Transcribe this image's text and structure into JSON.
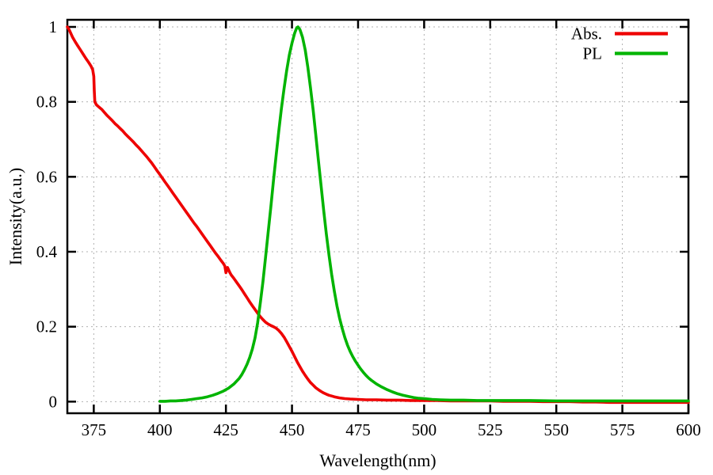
{
  "chart_data": {
    "type": "line",
    "title": "",
    "xlabel": "Wavelength(nm)",
    "ylabel": "Intensity(a.u.)",
    "xlim": [
      365,
      600
    ],
    "ylim": [
      -0.031,
      1.019
    ],
    "xticks": [
      375,
      400,
      425,
      450,
      475,
      500,
      525,
      550,
      575,
      600
    ],
    "xtick_labels": [
      "375",
      "400",
      "425",
      "450",
      "475",
      "500",
      "525",
      "550",
      "575",
      "600"
    ],
    "yticks": [
      0,
      0.2,
      0.4,
      0.6,
      0.8,
      1
    ],
    "ytick_labels": [
      "0",
      "0.2",
      "0.4",
      "0.6",
      "0.8",
      "1"
    ],
    "grid": true,
    "grid_color": "#b0b0b0",
    "border_color": "#000000",
    "background_color": "#ffffff",
    "legend_position": "top-right",
    "series": [
      {
        "name": "Abs.",
        "color": "#ee0000",
        "points": [
          [
            365,
            1.0
          ],
          [
            365.5,
            0.995
          ],
          [
            366,
            0.988
          ],
          [
            366.5,
            0.98
          ],
          [
            367,
            0.972
          ],
          [
            368,
            0.96
          ],
          [
            369,
            0.949
          ],
          [
            370,
            0.938
          ],
          [
            371,
            0.927
          ],
          [
            372,
            0.916
          ],
          [
            373,
            0.906
          ],
          [
            374,
            0.895
          ],
          [
            374.6,
            0.886
          ],
          [
            375,
            0.868
          ],
          [
            375.2,
            0.83
          ],
          [
            375.4,
            0.8
          ],
          [
            376,
            0.792
          ],
          [
            377,
            0.786
          ],
          [
            378,
            0.78
          ],
          [
            379,
            0.772
          ],
          [
            380,
            0.764
          ],
          [
            381,
            0.757
          ],
          [
            382,
            0.75
          ],
          [
            383,
            0.742
          ],
          [
            384,
            0.736
          ],
          [
            385,
            0.729
          ],
          [
            386,
            0.722
          ],
          [
            387,
            0.714
          ],
          [
            388,
            0.707
          ],
          [
            389,
            0.7
          ],
          [
            390,
            0.693
          ],
          [
            391,
            0.685
          ],
          [
            392,
            0.678
          ],
          [
            393,
            0.67
          ],
          [
            394,
            0.662
          ],
          [
            395,
            0.654
          ],
          [
            396,
            0.645
          ],
          [
            397,
            0.636
          ],
          [
            398,
            0.626
          ],
          [
            399,
            0.616
          ],
          [
            400,
            0.606
          ],
          [
            401,
            0.596
          ],
          [
            402,
            0.586
          ],
          [
            403,
            0.576
          ],
          [
            404,
            0.566
          ],
          [
            405,
            0.556
          ],
          [
            406,
            0.546
          ],
          [
            407,
            0.536
          ],
          [
            408,
            0.526
          ],
          [
            409,
            0.516
          ],
          [
            410,
            0.506
          ],
          [
            411,
            0.496
          ],
          [
            412,
            0.486
          ],
          [
            413,
            0.476
          ],
          [
            414,
            0.467
          ],
          [
            415,
            0.457
          ],
          [
            416,
            0.447
          ],
          [
            417,
            0.437
          ],
          [
            418,
            0.427
          ],
          [
            419,
            0.417
          ],
          [
            420,
            0.407
          ],
          [
            421,
            0.397
          ],
          [
            422,
            0.388
          ],
          [
            423,
            0.378
          ],
          [
            424,
            0.369
          ],
          [
            424.6,
            0.362
          ],
          [
            425,
            0.344
          ],
          [
            425.6,
            0.358
          ],
          [
            426.4,
            0.346
          ],
          [
            427,
            0.338
          ],
          [
            428,
            0.329
          ],
          [
            429,
            0.319
          ],
          [
            430,
            0.309
          ],
          [
            431,
            0.299
          ],
          [
            432,
            0.288
          ],
          [
            433,
            0.277
          ],
          [
            434,
            0.266
          ],
          [
            435,
            0.256
          ],
          [
            436,
            0.246
          ],
          [
            437,
            0.236
          ],
          [
            438,
            0.227
          ],
          [
            439,
            0.219
          ],
          [
            440,
            0.212
          ],
          [
            441,
            0.207
          ],
          [
            442,
            0.203
          ],
          [
            443,
            0.2
          ],
          [
            444,
            0.196
          ],
          [
            445,
            0.19
          ],
          [
            446,
            0.182
          ],
          [
            447,
            0.172
          ],
          [
            448,
            0.16
          ],
          [
            449,
            0.147
          ],
          [
            450,
            0.134
          ],
          [
            451,
            0.12
          ],
          [
            452,
            0.106
          ],
          [
            453,
            0.093
          ],
          [
            454,
            0.081
          ],
          [
            455,
            0.07
          ],
          [
            456,
            0.06
          ],
          [
            457,
            0.051
          ],
          [
            458,
            0.044
          ],
          [
            459,
            0.037
          ],
          [
            460,
            0.032
          ],
          [
            461,
            0.027
          ],
          [
            462,
            0.023
          ],
          [
            463,
            0.02
          ],
          [
            464,
            0.017
          ],
          [
            465,
            0.015
          ],
          [
            466,
            0.013
          ],
          [
            468,
            0.01
          ],
          [
            470,
            0.008
          ],
          [
            472,
            0.007
          ],
          [
            475,
            0.006
          ],
          [
            478,
            0.005
          ],
          [
            482,
            0.005
          ],
          [
            486,
            0.004
          ],
          [
            490,
            0.004
          ],
          [
            495,
            0.003
          ],
          [
            500,
            0.003
          ],
          [
            505,
            0.003
          ],
          [
            510,
            0.002
          ],
          [
            515,
            0.002
          ],
          [
            520,
            0.002
          ],
          [
            525,
            0.002
          ],
          [
            530,
            0.001
          ],
          [
            535,
            0.001
          ],
          [
            540,
            0.001
          ],
          [
            545,
            0.0
          ],
          [
            550,
            0.0
          ],
          [
            555,
            0.0
          ],
          [
            560,
            -0.001
          ],
          [
            565,
            -0.001
          ],
          [
            570,
            -0.002
          ],
          [
            575,
            -0.002
          ],
          [
            580,
            -0.002
          ],
          [
            585,
            -0.002
          ],
          [
            590,
            -0.002
          ],
          [
            595,
            -0.002
          ],
          [
            600,
            -0.002
          ]
        ]
      },
      {
        "name": "PL",
        "color": "#00b400",
        "points": [
          [
            400,
            0.001
          ],
          [
            402,
            0.001
          ],
          [
            404,
            0.002
          ],
          [
            406,
            0.002
          ],
          [
            408,
            0.003
          ],
          [
            410,
            0.004
          ],
          [
            412,
            0.006
          ],
          [
            414,
            0.008
          ],
          [
            416,
            0.01
          ],
          [
            418,
            0.013
          ],
          [
            420,
            0.017
          ],
          [
            422,
            0.022
          ],
          [
            424,
            0.028
          ],
          [
            426,
            0.036
          ],
          [
            428,
            0.047
          ],
          [
            430,
            0.062
          ],
          [
            431,
            0.072
          ],
          [
            432,
            0.085
          ],
          [
            433,
            0.1
          ],
          [
            434,
            0.118
          ],
          [
            435,
            0.14
          ],
          [
            436,
            0.17
          ],
          [
            437,
            0.21
          ],
          [
            438,
            0.262
          ],
          [
            439,
            0.32
          ],
          [
            440,
            0.385
          ],
          [
            441,
            0.452
          ],
          [
            442,
            0.52
          ],
          [
            443,
            0.59
          ],
          [
            444,
            0.658
          ],
          [
            445,
            0.722
          ],
          [
            446,
            0.782
          ],
          [
            447,
            0.836
          ],
          [
            448,
            0.884
          ],
          [
            449,
            0.925
          ],
          [
            450,
            0.957
          ],
          [
            451,
            0.983
          ],
          [
            451.8,
            0.998
          ],
          [
            452.3,
            1.0
          ],
          [
            453,
            0.993
          ],
          [
            454,
            0.972
          ],
          [
            455,
            0.938
          ],
          [
            456,
            0.892
          ],
          [
            457,
            0.838
          ],
          [
            458,
            0.778
          ],
          [
            459,
            0.712
          ],
          [
            460,
            0.644
          ],
          [
            461,
            0.576
          ],
          [
            462,
            0.51
          ],
          [
            463,
            0.448
          ],
          [
            464,
            0.391
          ],
          [
            465,
            0.34
          ],
          [
            466,
            0.295
          ],
          [
            467,
            0.256
          ],
          [
            468,
            0.223
          ],
          [
            469,
            0.195
          ],
          [
            470,
            0.171
          ],
          [
            471,
            0.151
          ],
          [
            472,
            0.134
          ],
          [
            473,
            0.12
          ],
          [
            474,
            0.108
          ],
          [
            475,
            0.097
          ],
          [
            476,
            0.087
          ],
          [
            477,
            0.078
          ],
          [
            478,
            0.07
          ],
          [
            479,
            0.063
          ],
          [
            480,
            0.057
          ],
          [
            482,
            0.047
          ],
          [
            484,
            0.039
          ],
          [
            486,
            0.032
          ],
          [
            488,
            0.026
          ],
          [
            490,
            0.021
          ],
          [
            492,
            0.017
          ],
          [
            494,
            0.014
          ],
          [
            496,
            0.011
          ],
          [
            498,
            0.009
          ],
          [
            500,
            0.008
          ],
          [
            503,
            0.006
          ],
          [
            506,
            0.005
          ],
          [
            510,
            0.004
          ],
          [
            515,
            0.004
          ],
          [
            520,
            0.003
          ],
          [
            530,
            0.003
          ],
          [
            540,
            0.003
          ],
          [
            550,
            0.002
          ],
          [
            560,
            0.002
          ],
          [
            570,
            0.002
          ],
          [
            580,
            0.002
          ],
          [
            590,
            0.002
          ],
          [
            600,
            0.002
          ]
        ]
      }
    ],
    "legend": {
      "entries": [
        {
          "label": "Abs.",
          "color": "#ee0000"
        },
        {
          "label": "PL",
          "color": "#00b400"
        }
      ]
    }
  }
}
